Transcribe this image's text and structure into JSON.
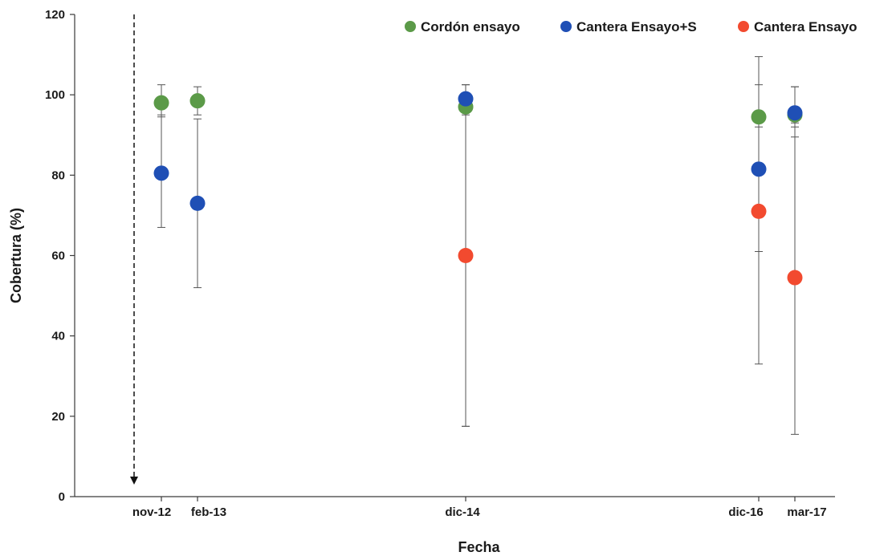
{
  "chart_data": {
    "type": "scatter",
    "xlabel": "Fecha",
    "ylabel": "Cobertura (%)",
    "ylim": [
      0,
      120
    ],
    "y_ticks": [
      0,
      20,
      40,
      60,
      80,
      100,
      120
    ],
    "x_ticks": [
      "nov-12",
      "feb-13",
      "dic-14",
      "dic-16",
      "mar-17"
    ],
    "grid": false,
    "legend_position": "top-right",
    "annotation": "dashed downward arrow at nov-12",
    "series": [
      {
        "name": "Cordón ensayo",
        "color": "#5b9a48",
        "points": [
          {
            "x": "nov-12",
            "y": 98,
            "err_low": 94.5,
            "err_high": 102.5
          },
          {
            "x": "feb-13",
            "y": 98.5,
            "err_low": 95,
            "err_high": 102
          },
          {
            "x": "dic-14",
            "y": 97,
            "err_low": 17.5,
            "err_high": 102.5
          },
          {
            "x": "dic-16",
            "y": 94.5,
            "err_low": 92,
            "err_high": 109.5
          },
          {
            "x": "mar-17",
            "y": 95,
            "err_low": 92,
            "err_high": 102
          }
        ]
      },
      {
        "name": "Cantera Ensayo+S",
        "color": "#1f4fb5",
        "points": [
          {
            "x": "nov-12",
            "y": 80.5,
            "err_low": 67,
            "err_high": 95
          },
          {
            "x": "feb-13",
            "y": 73,
            "err_low": 52,
            "err_high": 94
          },
          {
            "x": "dic-14",
            "y": 99,
            "err_low": 95,
            "err_high": 102.5
          },
          {
            "x": "dic-16",
            "y": 81.5,
            "err_low": 61,
            "err_high": 102.5
          },
          {
            "x": "mar-17",
            "y": 95.5,
            "err_low": 89.5,
            "err_high": 102
          }
        ]
      },
      {
        "name": "Cantera Ensayo",
        "color": "#f24a2f",
        "points": [
          {
            "x": "dic-14",
            "y": 60,
            "err_low": 17.5,
            "err_high": 97
          },
          {
            "x": "dic-16",
            "y": 71,
            "err_low": 33,
            "err_high": 94
          },
          {
            "x": "mar-17",
            "y": 54.5,
            "err_low": 15.5,
            "err_high": 93
          }
        ]
      }
    ]
  }
}
